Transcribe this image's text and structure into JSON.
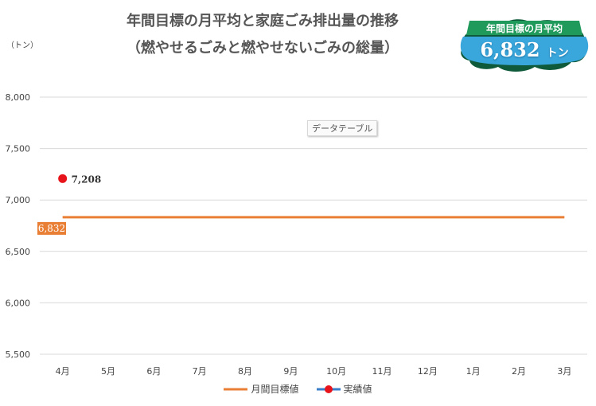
{
  "title": {
    "line1": "年間目標の月平均と家庭ごみ排出量の推移",
    "line2": "（燃やせるごみと燃やせないごみの総量）"
  },
  "unit_label": "（トン）",
  "badge": {
    "caption": "年間目標の月平均",
    "value": "6,832",
    "unit": "トン"
  },
  "tooltip": "データテーブル",
  "colors": {
    "target": "#E97F34",
    "actual": "#E8141B",
    "actual_line": "#3A7DC9",
    "grid": "#D9D9D9"
  },
  "chart_data": {
    "type": "line",
    "categories": [
      "4月",
      "5月",
      "6月",
      "7月",
      "8月",
      "9月",
      "10月",
      "11月",
      "12月",
      "1月",
      "2月",
      "3月"
    ],
    "ylim": [
      5500,
      8000
    ],
    "yticks": [
      5500,
      6000,
      6500,
      7000,
      7500,
      8000
    ],
    "ytick_labels": [
      "5,500",
      "6,000",
      "6,500",
      "7,000",
      "7,500",
      "8,000"
    ],
    "grid": true,
    "legend_position": "bottom",
    "series": [
      {
        "name": "月間目標値",
        "values": [
          6832,
          6832,
          6832,
          6832,
          6832,
          6832,
          6832,
          6832,
          6832,
          6832,
          6832,
          6832
        ],
        "first_label": "6,832"
      },
      {
        "name": "実績値",
        "values": [
          7208,
          null,
          null,
          null,
          null,
          null,
          null,
          null,
          null,
          null,
          null,
          null
        ],
        "first_label": "7,208"
      }
    ]
  }
}
